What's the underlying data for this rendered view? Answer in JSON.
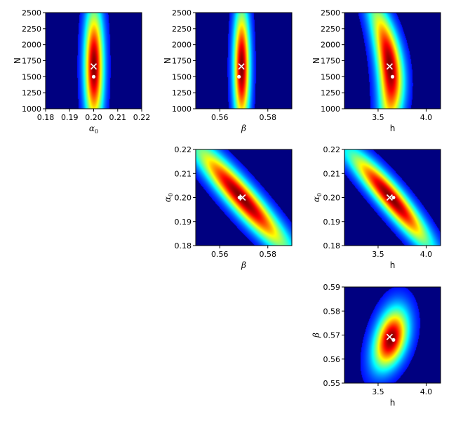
{
  "colors": {
    "background": "#000080",
    "colormap": "jet",
    "marker_true": "#ffffff",
    "marker_estimate": "#ffffff"
  },
  "chart_data": [
    {
      "type": "heatmap",
      "panel": "N-vs-alpha0",
      "xlabel": "α",
      "xlabel_sub": "0",
      "ylabel": "N",
      "xlim": [
        0.18,
        0.22
      ],
      "ylim": [
        1000,
        2500
      ],
      "xticks": [
        0.18,
        0.19,
        0.2,
        0.21,
        0.22
      ],
      "xtick_labels": [
        "0.18",
        "0.19",
        "0.20",
        "0.21",
        "0.22"
      ],
      "yticks": [
        1000,
        1250,
        1500,
        1750,
        2000,
        2250,
        2500
      ],
      "ytick_labels": [
        "1000",
        "1250",
        "1500",
        "1750",
        "2000",
        "2250",
        "2500"
      ],
      "peak": [
        0.2,
        1660
      ],
      "marker_x": [
        0.2,
        1660
      ],
      "marker_dot": [
        0.2,
        1500
      ]
    },
    {
      "type": "heatmap",
      "panel": "N-vs-beta",
      "xlabel": "β",
      "ylabel": "N",
      "xlim": [
        0.55,
        0.59
      ],
      "ylim": [
        1000,
        2500
      ],
      "xticks": [
        0.56,
        0.58
      ],
      "xtick_labels": [
        "0.56",
        "0.58"
      ],
      "yticks": [
        1000,
        1250,
        1500,
        1750,
        2000,
        2250,
        2500
      ],
      "ytick_labels": [
        "1000",
        "1250",
        "1500",
        "1750",
        "2000",
        "2250",
        "2500"
      ],
      "peak": [
        0.569,
        1650
      ],
      "marker_x": [
        0.569,
        1660
      ],
      "marker_dot": [
        0.568,
        1500
      ]
    },
    {
      "type": "heatmap",
      "panel": "N-vs-h",
      "xlabel": "h",
      "ylabel": "N",
      "xlim": [
        3.15,
        4.15
      ],
      "ylim": [
        1000,
        2500
      ],
      "xticks": [
        3.5,
        4.0
      ],
      "xtick_labels": [
        "3.5",
        "4.0"
      ],
      "yticks": [
        1000,
        1250,
        1500,
        1750,
        2000,
        2250,
        2500
      ],
      "ytick_labels": [
        "1000",
        "1250",
        "1500",
        "1750",
        "2000",
        "2250",
        "2500"
      ],
      "peak": [
        3.62,
        1650
      ],
      "marker_x": [
        3.62,
        1660
      ],
      "marker_dot": [
        3.65,
        1500
      ]
    },
    {
      "type": "heatmap",
      "panel": "alpha0-vs-beta",
      "xlabel": "β",
      "ylabel": "α",
      "ylabel_sub": "0",
      "xlim": [
        0.55,
        0.59
      ],
      "ylim": [
        0.18,
        0.22
      ],
      "xticks": [
        0.56,
        0.58
      ],
      "xtick_labels": [
        "0.56",
        "0.58"
      ],
      "yticks": [
        0.18,
        0.19,
        0.2,
        0.21,
        0.22
      ],
      "ytick_labels": [
        "0.18",
        "0.19",
        "0.20",
        "0.21",
        "0.22"
      ],
      "peak": [
        0.569,
        0.2
      ],
      "marker_x": [
        0.5695,
        0.2
      ],
      "marker_dot": [
        0.5682,
        0.2
      ]
    },
    {
      "type": "heatmap",
      "panel": "alpha0-vs-h",
      "xlabel": "h",
      "ylabel": "α",
      "ylabel_sub": "0",
      "xlim": [
        3.15,
        4.15
      ],
      "ylim": [
        0.18,
        0.22
      ],
      "xticks": [
        3.5,
        4.0
      ],
      "xtick_labels": [
        "3.5",
        "4.0"
      ],
      "yticks": [
        0.18,
        0.19,
        0.2,
        0.21,
        0.22
      ],
      "ytick_labels": [
        "0.18",
        "0.19",
        "0.20",
        "0.21",
        "0.22"
      ],
      "peak": [
        3.63,
        0.2
      ],
      "marker_x": [
        3.62,
        0.2
      ],
      "marker_dot": [
        3.66,
        0.2
      ]
    },
    {
      "type": "heatmap",
      "panel": "beta-vs-h",
      "xlabel": "h",
      "ylabel": "β",
      "xlim": [
        3.15,
        4.15
      ],
      "ylim": [
        0.55,
        0.59
      ],
      "xticks": [
        3.5,
        4.0
      ],
      "xtick_labels": [
        "3.5",
        "4.0"
      ],
      "yticks": [
        0.55,
        0.56,
        0.57,
        0.58,
        0.59
      ],
      "ytick_labels": [
        "0.55",
        "0.56",
        "0.57",
        "0.58",
        "0.59"
      ],
      "peak": [
        3.63,
        0.5685
      ],
      "marker_x": [
        3.62,
        0.5692
      ],
      "marker_dot": [
        3.66,
        0.568
      ]
    }
  ]
}
